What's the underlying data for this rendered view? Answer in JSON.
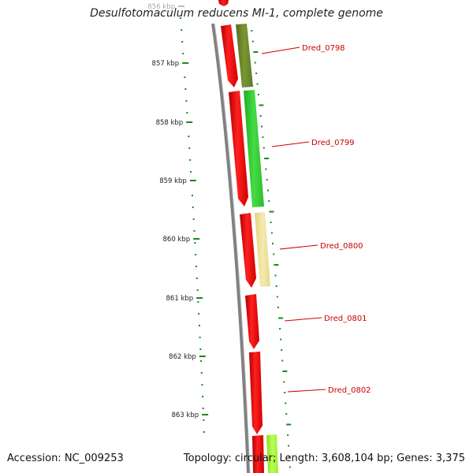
{
  "title": "Desulfotomaculum reducens MI-1, complete genome",
  "footer": {
    "accession": "Accession: NC_009253",
    "summary": "Topology: circular; Length: 3,608,104 bp; Genes: 3,375"
  },
  "axis": {
    "unit": "kbp",
    "ticks": [
      {
        "label": "856 kbp",
        "faded": true
      },
      {
        "label": "857 kbp"
      },
      {
        "label": "858 kbp"
      },
      {
        "label": "859 kbp"
      },
      {
        "label": "860 kbp"
      },
      {
        "label": "861 kbp"
      },
      {
        "label": "862 kbp"
      },
      {
        "label": "863 kbp"
      }
    ]
  },
  "genes": [
    {
      "label": "Dred_0798",
      "color": "#6b8a2a"
    },
    {
      "label": "Dred_0799",
      "color": "#33cc33"
    },
    {
      "label": "Dred_0800",
      "color": "#ecdf96"
    },
    {
      "label": "Dred_0801"
    },
    {
      "label": "Dred_0802"
    }
  ],
  "colors": {
    "backbone": "#808080",
    "inner_track": "#ff0000",
    "ruler": "#1a8a1a",
    "label": "#cc0000",
    "last_gene": "#99ee33"
  }
}
